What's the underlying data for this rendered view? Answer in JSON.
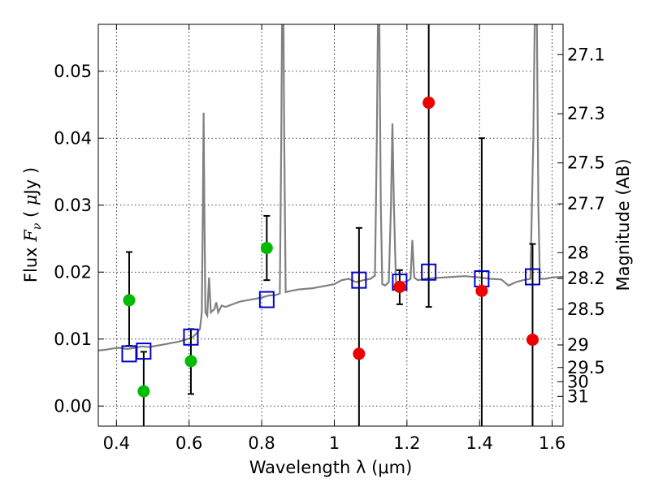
{
  "chart_data": {
    "type": "scatter",
    "xlabel": "Wavelength  λ (μm)",
    "ylabel": "Flux  F_ν  ( μJy )",
    "ylabel_parts": {
      "pre": "Flux  ",
      "var": "F",
      "sub": "ν",
      "open": "  ( ",
      "mu": "μ",
      "unit": "Jy )"
    },
    "y2label": "Magnitude (AB)",
    "xlim": [
      0.35,
      1.63
    ],
    "ylim": [
      -0.003,
      0.057
    ],
    "grid": true,
    "x_ticks": [
      {
        "value": 0.4,
        "label": "0.4"
      },
      {
        "value": 0.6,
        "label": "0.6"
      },
      {
        "value": 0.8,
        "label": "0.8"
      },
      {
        "value": 1.0,
        "label": "1"
      },
      {
        "value": 1.2,
        "label": "1.2"
      },
      {
        "value": 1.4,
        "label": "1.4"
      },
      {
        "value": 1.6,
        "label": "1.6"
      }
    ],
    "y_ticks": [
      {
        "value": 0.0,
        "label": "0.00"
      },
      {
        "value": 0.01,
        "label": "0.01"
      },
      {
        "value": 0.02,
        "label": "0.02"
      },
      {
        "value": 0.03,
        "label": "0.03"
      },
      {
        "value": 0.04,
        "label": "0.04"
      },
      {
        "value": 0.05,
        "label": "0.05"
      }
    ],
    "mag_ticks": [
      {
        "mag": 27.1,
        "label": "27.1"
      },
      {
        "mag": 27.3,
        "label": "27.3"
      },
      {
        "mag": 27.5,
        "label": "27.5"
      },
      {
        "mag": 27.7,
        "label": "27.7"
      },
      {
        "mag": 28,
        "label": "28"
      },
      {
        "mag": 28.2,
        "label": "28.2"
      },
      {
        "mag": 28.5,
        "label": "28.5"
      },
      {
        "mag": 29,
        "label": "29"
      },
      {
        "mag": 29.5,
        "label": "29.5"
      },
      {
        "mag": 30,
        "label": "30"
      },
      {
        "mag": 31,
        "label": "31"
      }
    ],
    "colors": {
      "template": "#808080",
      "model_box": "#0000cc",
      "detection": "#00bb00",
      "upper_limit": "#ee0000",
      "errorbar": "#000000"
    },
    "template_spectrum": [
      [
        0.35,
        0.0083
      ],
      [
        0.37,
        0.0084
      ],
      [
        0.39,
        0.0086
      ],
      [
        0.41,
        0.0087
      ],
      [
        0.43,
        0.0085
      ],
      [
        0.45,
        0.0087
      ],
      [
        0.47,
        0.0089
      ],
      [
        0.49,
        0.0088
      ],
      [
        0.51,
        0.009
      ],
      [
        0.53,
        0.0092
      ],
      [
        0.55,
        0.0094
      ],
      [
        0.57,
        0.0096
      ],
      [
        0.59,
        0.0099
      ],
      [
        0.6,
        0.0101
      ],
      [
        0.61,
        0.0103
      ],
      [
        0.62,
        0.0108
      ],
      [
        0.63,
        0.0115
      ],
      [
        0.635,
        0.014
      ],
      [
        0.638,
        0.03
      ],
      [
        0.64,
        0.0438
      ],
      [
        0.642,
        0.03
      ],
      [
        0.645,
        0.014
      ],
      [
        0.65,
        0.0135
      ],
      [
        0.655,
        0.0192
      ],
      [
        0.66,
        0.014
      ],
      [
        0.67,
        0.0145
      ],
      [
        0.675,
        0.0155
      ],
      [
        0.68,
        0.014
      ],
      [
        0.69,
        0.015
      ],
      [
        0.7,
        0.0148
      ],
      [
        0.72,
        0.0152
      ],
      [
        0.74,
        0.0156
      ],
      [
        0.76,
        0.0158
      ],
      [
        0.78,
        0.016
      ],
      [
        0.8,
        0.0162
      ],
      [
        0.82,
        0.0165
      ],
      [
        0.84,
        0.0166
      ],
      [
        0.85,
        0.0168
      ],
      [
        0.854,
        0.04
      ],
      [
        0.856,
        0.057
      ],
      [
        0.86,
        0.057
      ],
      [
        0.862,
        0.04
      ],
      [
        0.866,
        0.017
      ],
      [
        0.88,
        0.0172
      ],
      [
        0.9,
        0.0174
      ],
      [
        0.92,
        0.0175
      ],
      [
        0.94,
        0.0176
      ],
      [
        0.96,
        0.0178
      ],
      [
        0.98,
        0.018
      ],
      [
        1.0,
        0.0182
      ],
      [
        1.02,
        0.0188
      ],
      [
        1.04,
        0.019
      ],
      [
        1.06,
        0.0185
      ],
      [
        1.08,
        0.0188
      ],
      [
        1.1,
        0.019
      ],
      [
        1.112,
        0.0195
      ],
      [
        1.117,
        0.04
      ],
      [
        1.12,
        0.057
      ],
      [
        1.124,
        0.057
      ],
      [
        1.128,
        0.03
      ],
      [
        1.132,
        0.0182
      ],
      [
        1.14,
        0.018
      ],
      [
        1.15,
        0.0185
      ],
      [
        1.156,
        0.03
      ],
      [
        1.16,
        0.0422
      ],
      [
        1.164,
        0.03
      ],
      [
        1.17,
        0.0182
      ],
      [
        1.18,
        0.0184
      ],
      [
        1.19,
        0.0185
      ],
      [
        1.2,
        0.0186
      ],
      [
        1.21,
        0.019
      ],
      [
        1.215,
        0.0248
      ],
      [
        1.22,
        0.0192
      ],
      [
        1.23,
        0.0188
      ],
      [
        1.25,
        0.019
      ],
      [
        1.27,
        0.0191
      ],
      [
        1.3,
        0.0192
      ],
      [
        1.33,
        0.0193
      ],
      [
        1.36,
        0.0194
      ],
      [
        1.4,
        0.0192
      ],
      [
        1.43,
        0.019
      ],
      [
        1.46,
        0.0189
      ],
      [
        1.48,
        0.018
      ],
      [
        1.5,
        0.0185
      ],
      [
        1.52,
        0.0188
      ],
      [
        1.54,
        0.019
      ],
      [
        1.548,
        0.04
      ],
      [
        1.552,
        0.057
      ],
      [
        1.558,
        0.057
      ],
      [
        1.562,
        0.03
      ],
      [
        1.566,
        0.019
      ],
      [
        1.58,
        0.019
      ],
      [
        1.6,
        0.0192
      ],
      [
        1.63,
        0.0193
      ]
    ],
    "model_boxes": [
      {
        "x": 0.435,
        "y": 0.0078
      },
      {
        "x": 0.475,
        "y": 0.0082
      },
      {
        "x": 0.605,
        "y": 0.0103
      },
      {
        "x": 0.814,
        "y": 0.0159
      },
      {
        "x": 1.068,
        "y": 0.0188
      },
      {
        "x": 1.18,
        "y": 0.0185
      },
      {
        "x": 1.26,
        "y": 0.02
      },
      {
        "x": 1.406,
        "y": 0.019
      },
      {
        "x": 1.546,
        "y": 0.0193
      }
    ],
    "detections": [
      {
        "x": 0.435,
        "y": 0.0158,
        "yerr_low": 0.009,
        "yerr_high": 0.023
      },
      {
        "x": 0.475,
        "y": 0.0022,
        "yerr_low": -0.003,
        "yerr_high": 0.0081
      },
      {
        "x": 0.605,
        "y": 0.0067,
        "yerr_low": 0.0018,
        "yerr_high": 0.0115
      },
      {
        "x": 0.814,
        "y": 0.0236,
        "yerr_low": 0.0188,
        "yerr_high": 0.0284
      }
    ],
    "upper_limits": [
      {
        "x": 1.068,
        "y": 0.0078,
        "yerr_low": -0.003,
        "yerr_high": 0.0266
      },
      {
        "x": 1.18,
        "y": 0.0178,
        "yerr_low": 0.0152,
        "yerr_high": 0.0203
      },
      {
        "x": 1.26,
        "y": 0.0453,
        "yerr_low": 0.0148,
        "yerr_high": 0.057
      },
      {
        "x": 1.406,
        "y": 0.0172,
        "yerr_low": -0.003,
        "yerr_high": 0.04
      },
      {
        "x": 1.546,
        "y": 0.0099,
        "yerr_low": -0.003,
        "yerr_high": 0.0242
      }
    ]
  }
}
